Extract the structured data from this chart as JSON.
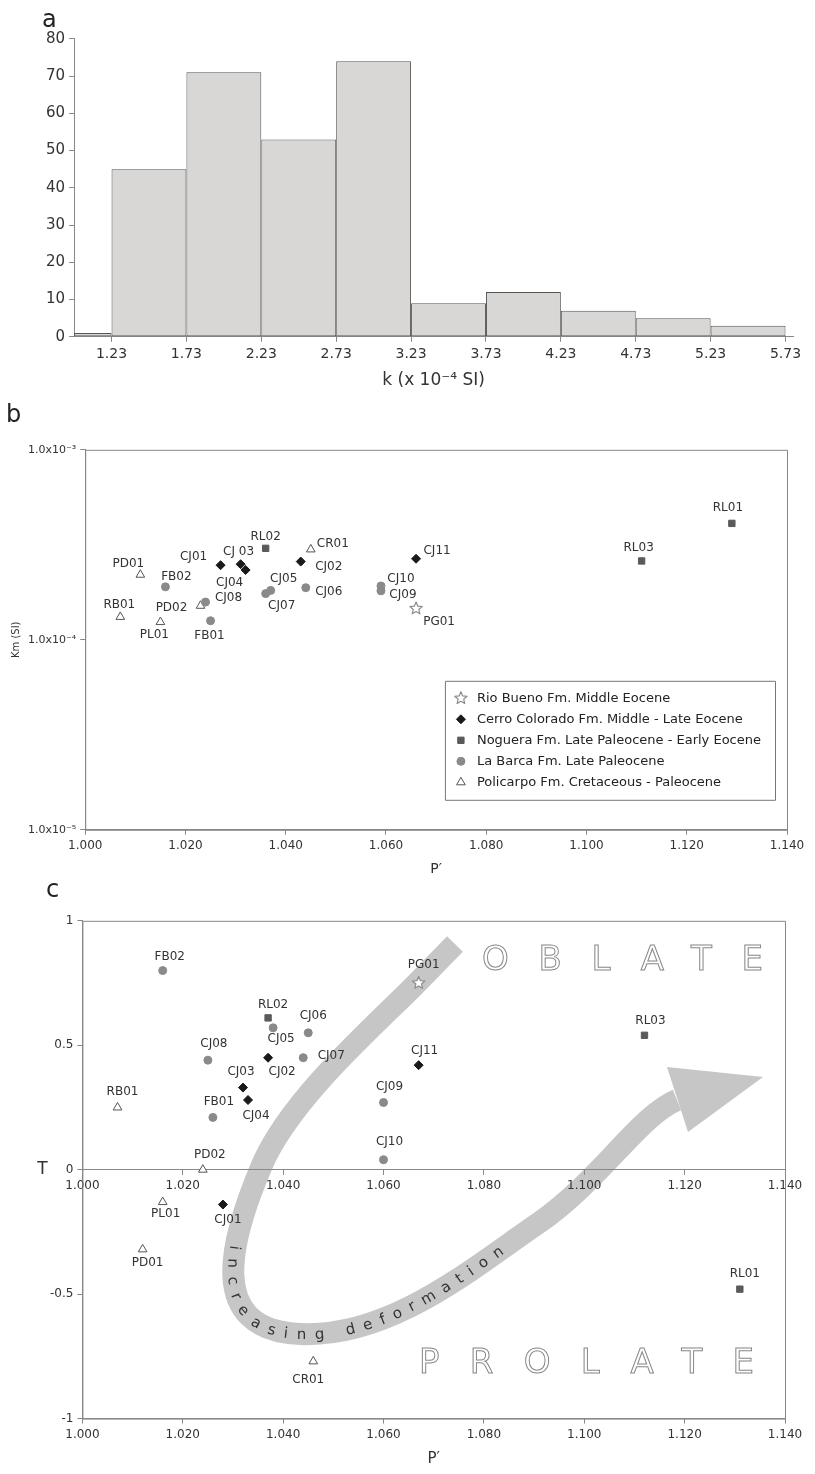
{
  "chart_data": [
    {
      "type": "histogram",
      "title": "a",
      "xlabel": "k (x 10⁻⁴ SI)",
      "bins": [
        0.98,
        1.23,
        1.73,
        2.23,
        2.73,
        3.23,
        3.73,
        4.23,
        4.73,
        5.23,
        5.73
      ],
      "values": [
        1,
        45,
        71,
        53,
        74,
        9,
        12,
        7,
        5,
        3
      ],
      "color": "#d9d6d6",
      "xlim": [
        0.98,
        5.78
      ],
      "xticks": [
        1.23,
        1.73,
        2.23,
        2.73,
        3.23,
        3.73,
        4.23,
        4.73,
        5.23,
        5.73
      ],
      "ylim": [
        0,
        80
      ],
      "yticks": [
        0,
        10,
        20,
        30,
        40,
        50,
        60,
        70,
        80
      ]
    },
    {
      "type": "scatter",
      "title": "b",
      "xlabel": "P′",
      "ylabel": "Km (SI)",
      "log": "y",
      "legend": "bottom right",
      "xlim": [
        1,
        1.14
      ],
      "xticks": [
        {
          "value": 1,
          "label": "1.000"
        },
        {
          "value": 1.02,
          "label": "1.020"
        },
        {
          "value": 1.04,
          "label": "1.040"
        },
        {
          "value": 1.06,
          "label": "1.060"
        },
        {
          "value": 1.08,
          "label": "1.080"
        },
        {
          "value": 1.1,
          "label": "1.100"
        },
        {
          "value": 1.12,
          "label": "1.120"
        },
        {
          "value": 1.14,
          "label": "1.140"
        }
      ],
      "ylim": [
        1e-05,
        0.001
      ],
      "yticks": [
        {
          "value": 1e-05,
          "label": "1.0x10⁻⁵"
        },
        {
          "value": 0.0001,
          "label": "1.0x10⁻⁴"
        },
        {
          "value": 0.001,
          "label": "1.0x10⁻³"
        }
      ],
      "series": [
        {
          "name": "Rio Bueno Fm. Middle Eocene",
          "color": "#8c8c8c",
          "marker": "star",
          "x": [
            1.066
          ],
          "values": [
            0.000146
          ],
          "value_labels": [
            "PG01"
          ]
        },
        {
          "name": "Cerro Colorado Fm. Middle - Late Eocene",
          "color": "#1a1a1a",
          "marker": "diamond",
          "x": [
            1.027,
            1.043,
            1.031,
            1.032,
            1.066
          ],
          "values": [
            0.000247,
            0.000258,
            0.00025,
            0.000233,
            0.000267
          ],
          "value_labels": [
            "CJ01",
            "CJ02",
            "CJ 03",
            "CJ04",
            "CJ11"
          ]
        },
        {
          "name": "Noguera Fm. Late Paleocene - Early Eocene",
          "color": "#5a5a5a",
          "marker": "square",
          "x": [
            1.129,
            1.036,
            1.111
          ],
          "values": [
            0.00041,
            0.000303,
            0.00026
          ],
          "value_labels": [
            "RL01",
            "RL02",
            "RL03"
          ]
        },
        {
          "name": "La Barca Fm. Late Paleocene",
          "color": "#8a8a8a",
          "marker": "circle",
          "x": [
            1.037,
            1.044,
            1.036,
            1.024,
            1.059,
            1.059,
            1.025,
            1.016
          ],
          "values": [
            0.000182,
            0.000188,
            0.000175,
            0.000158,
            0.000181,
            0.000192,
            0.000126,
            0.00019
          ],
          "value_labels": [
            "CJ05",
            "CJ06",
            "CJ07",
            "CJ08",
            "CJ09",
            "CJ10",
            "FB01",
            "FB02"
          ]
        },
        {
          "name": "Policarpo Fm. Cretaceous - Paleocene",
          "color": "#555555",
          "marker": "triangle",
          "x": [
            1.045,
            1.011,
            1.023,
            1.015,
            1.007
          ],
          "values": [
            0.000299,
            0.00022,
            0.000151,
            0.000124,
            0.000132
          ],
          "value_labels": [
            "CR01",
            "PD01",
            "PD02",
            "PL01",
            "RB01"
          ]
        }
      ]
    },
    {
      "type": "scatter",
      "title": "c",
      "xlabel": "P′",
      "ylabel": "T",
      "annotations": [
        "increasing deformation",
        "OBLATE",
        "PROLATE"
      ],
      "xlim": [
        1,
        1.14
      ],
      "xticks": [
        {
          "value": 1,
          "label": "1.000"
        },
        {
          "value": 1.02,
          "label": "1.020"
        },
        {
          "value": 1.04,
          "label": "1.040"
        },
        {
          "value": 1.06,
          "label": "1.060"
        },
        {
          "value": 1.08,
          "label": "1.080"
        },
        {
          "value": 1.1,
          "label": "1.100"
        },
        {
          "value": 1.12,
          "label": "1.120"
        },
        {
          "value": 1.14,
          "label": "1.140"
        }
      ],
      "ylim": [
        -1,
        1
      ],
      "yticks": [
        -1,
        -0.5,
        0,
        0.5,
        1
      ],
      "series": [
        {
          "color": "#8c8c8c",
          "marker": "star",
          "x": [
            1.067
          ],
          "values": [
            0.75
          ],
          "value_labels": [
            "PG01"
          ]
        },
        {
          "color": "#1a1a1a",
          "marker": "diamond",
          "x": [
            1.028,
            1.037,
            1.032,
            1.033,
            1.067
          ],
          "values": [
            -0.14,
            0.45,
            0.33,
            0.28,
            0.42
          ],
          "value_labels": [
            "CJ01",
            "CJ02",
            "CJ03",
            "CJ04",
            "CJ11"
          ]
        },
        {
          "color": "#5a5a5a",
          "marker": "square",
          "x": [
            1.131,
            1.037,
            1.112
          ],
          "values": [
            -0.48,
            0.61,
            0.54
          ],
          "value_labels": [
            "RL01",
            "RL02",
            "RL03"
          ]
        },
        {
          "color": "#8a8a8a",
          "marker": "circle",
          "x": [
            1.038,
            1.045,
            1.044,
            1.025,
            1.06,
            1.06,
            1.026,
            1.016
          ],
          "values": [
            0.57,
            0.55,
            0.45,
            0.44,
            0.27,
            0.04,
            0.21,
            0.8
          ],
          "value_labels": [
            "CJ05",
            "CJ06",
            "CJ07",
            "CJ08",
            "CJ09",
            "CJ10",
            "FB01",
            "FB02"
          ]
        },
        {
          "color": "#555555",
          "marker": "triangle",
          "x": [
            1.046,
            1.012,
            1.024,
            1.016,
            1.007
          ],
          "values": [
            -0.77,
            -0.32,
            0,
            -0.13,
            0.25
          ],
          "value_labels": [
            "CR01",
            "PD01",
            "PD02",
            "PL01",
            "RB01"
          ]
        }
      ]
    }
  ]
}
